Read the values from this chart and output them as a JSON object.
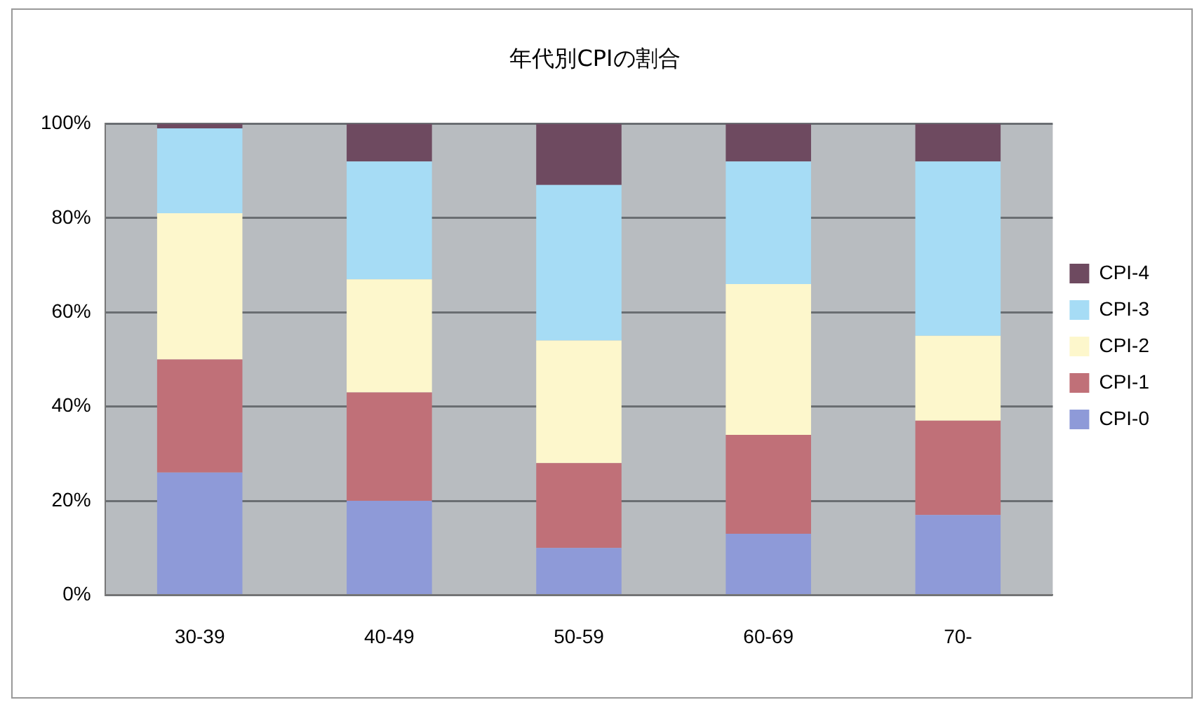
{
  "chart_data": {
    "type": "bar",
    "title": "年代別CPIの割合",
    "categories": [
      "30-39",
      "40-49",
      "50-59",
      "60-69",
      "70-"
    ],
    "stacked": true,
    "series": [
      {
        "name": "CPI-0",
        "color": "#8e9ad8",
        "values": [
          26,
          20,
          10,
          13,
          17
        ]
      },
      {
        "name": "CPI-1",
        "color": "#c07078",
        "values": [
          24,
          23,
          18,
          21,
          20
        ]
      },
      {
        "name": "CPI-2",
        "color": "#fdf7cc",
        "values": [
          31,
          24,
          26,
          32,
          18
        ]
      },
      {
        "name": "CPI-3",
        "color": "#a6dcf5",
        "values": [
          18,
          25,
          33,
          26,
          37
        ]
      },
      {
        "name": "CPI-4",
        "color": "#6e4a60",
        "values": [
          1,
          8,
          13,
          8,
          8
        ]
      }
    ],
    "ylim": [
      0,
      100
    ],
    "yticks": [
      {
        "value": 0,
        "label": "0%"
      },
      {
        "value": 20,
        "label": "20%"
      },
      {
        "value": 40,
        "label": "40%"
      },
      {
        "value": 60,
        "label": "60%"
      },
      {
        "value": 80,
        "label": "80%"
      },
      {
        "value": 100,
        "label": "100%"
      }
    ],
    "grid": "y",
    "legend": "right"
  }
}
